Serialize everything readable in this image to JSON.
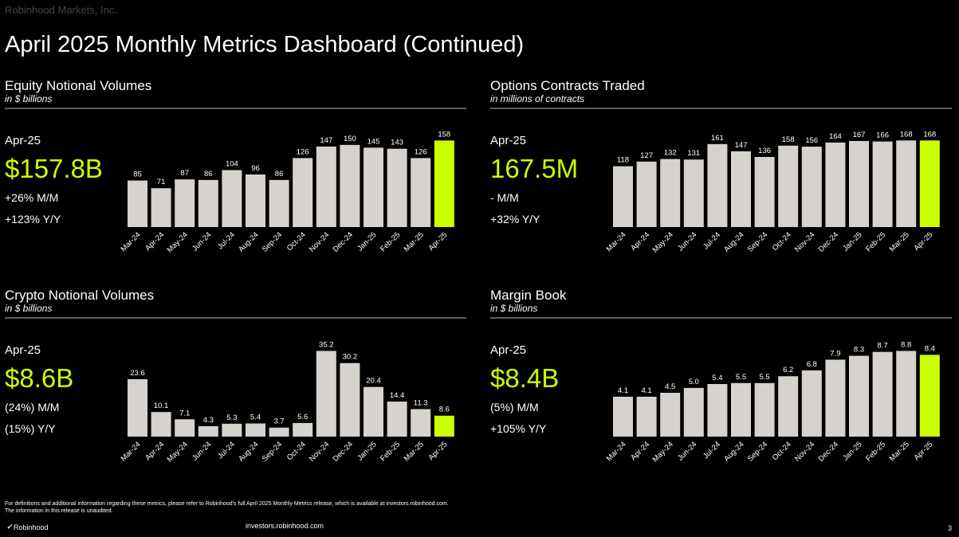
{
  "page": {
    "company": "Robinhood Markets, Inc.",
    "title": "April 2025 Monthly Metrics Dashboard (Continued)",
    "footnote_1": "For definitions and additional information regarding these metrics, please refer to Robinhood’s full April 2025 Monthly Metrics release, which is available at investors.robinhood.com.",
    "footnote_2": "The information in this release is unaudited.",
    "logo": "Robinhood",
    "url": "investors.robinhood.com",
    "page_number": "3"
  },
  "chart_data": [
    {
      "type": "bar",
      "title": "Equity Notional Volumes",
      "subtitle": "in $ billions",
      "kpi": {
        "period": "Apr-25",
        "value": "$157.8B",
        "mom": "+26% M/M",
        "yoy": "+123% Y/Y"
      },
      "categories": [
        "Mar-24",
        "Apr-24",
        "May-24",
        "Jun-24",
        "Jul-24",
        "Aug-24",
        "Sep-24",
        "Oct-24",
        "Nov-24",
        "Dec-24",
        "Jan-25",
        "Feb-25",
        "Mar-25",
        "Apr-25"
      ],
      "values": [
        85,
        71,
        87,
        86,
        104,
        96,
        86,
        126,
        147,
        150,
        145,
        143,
        126,
        158
      ],
      "color": "#d6d2cd",
      "highlight_color": "#ccff00",
      "ylim": [
        0,
        160
      ]
    },
    {
      "type": "bar",
      "title": "Options Contracts Traded",
      "subtitle": "in millions of contracts",
      "kpi": {
        "period": "Apr-25",
        "value": "167.5M",
        "mom": "- M/M",
        "yoy": "+32% Y/Y"
      },
      "categories": [
        "Mar-24",
        "Apr-24",
        "May-24",
        "Jun-24",
        "Jul-24",
        "Aug-24",
        "Sep-24",
        "Oct-24",
        "Nov-24",
        "Dec-24",
        "Jan-25",
        "Feb-25",
        "Mar-25",
        "Apr-25"
      ],
      "values": [
        118,
        127,
        132,
        131,
        161,
        147,
        136,
        158,
        156,
        164,
        167,
        166,
        168,
        168
      ],
      "color": "#d6d2cd",
      "highlight_color": "#ccff00",
      "ylim": [
        0,
        170
      ]
    },
    {
      "type": "bar",
      "title": "Crypto Notional Volumes",
      "subtitle": "in $ billions",
      "kpi": {
        "period": "Apr-25",
        "value": "$8.6B",
        "mom": "(24%) M/M",
        "yoy": "(15%) Y/Y"
      },
      "categories": [
        "Mar-24",
        "Apr-24",
        "May-24",
        "Jun-24",
        "Jul-24",
        "Aug-24",
        "Sep-24",
        "Oct-24",
        "Nov-24",
        "Dec-24",
        "Jan-25",
        "Feb-25",
        "Mar-25",
        "Apr-25"
      ],
      "values": [
        23.6,
        10.1,
        7.1,
        4.3,
        5.3,
        5.4,
        3.7,
        5.6,
        35.2,
        30.2,
        20.4,
        14.4,
        11.3,
        8.6
      ],
      "color": "#d6d2cd",
      "highlight_color": "#ccff00",
      "ylim": [
        0,
        36
      ]
    },
    {
      "type": "bar",
      "title": "Margin Book",
      "subtitle": "in $ billions",
      "kpi": {
        "period": "Apr-25",
        "value": "$8.4B",
        "mom": "(5%) M/M",
        "yoy": "+105% Y/Y"
      },
      "categories": [
        "Mar-24",
        "Apr-24",
        "May-24",
        "Jun-24",
        "Jul-24",
        "Aug-24",
        "Sep-24",
        "Oct-24",
        "Nov-24",
        "Dec-24",
        "Jan-25",
        "Feb-25",
        "Mar-25",
        "Apr-25"
      ],
      "values": [
        4.1,
        4.1,
        4.5,
        5.0,
        5.4,
        5.5,
        5.5,
        6.2,
        6.8,
        7.9,
        8.3,
        8.7,
        8.8,
        8.4
      ],
      "value_labels": [
        "4.1",
        "4.1",
        "4.5",
        "5.0",
        "5.4",
        "5.5",
        "5.5",
        "6.2",
        "6.8",
        "7.9",
        "8.3",
        "8.7",
        "8.8",
        "8.4"
      ],
      "color": "#d6d2cd",
      "highlight_color": "#ccff00",
      "ylim": [
        0,
        9
      ]
    }
  ]
}
